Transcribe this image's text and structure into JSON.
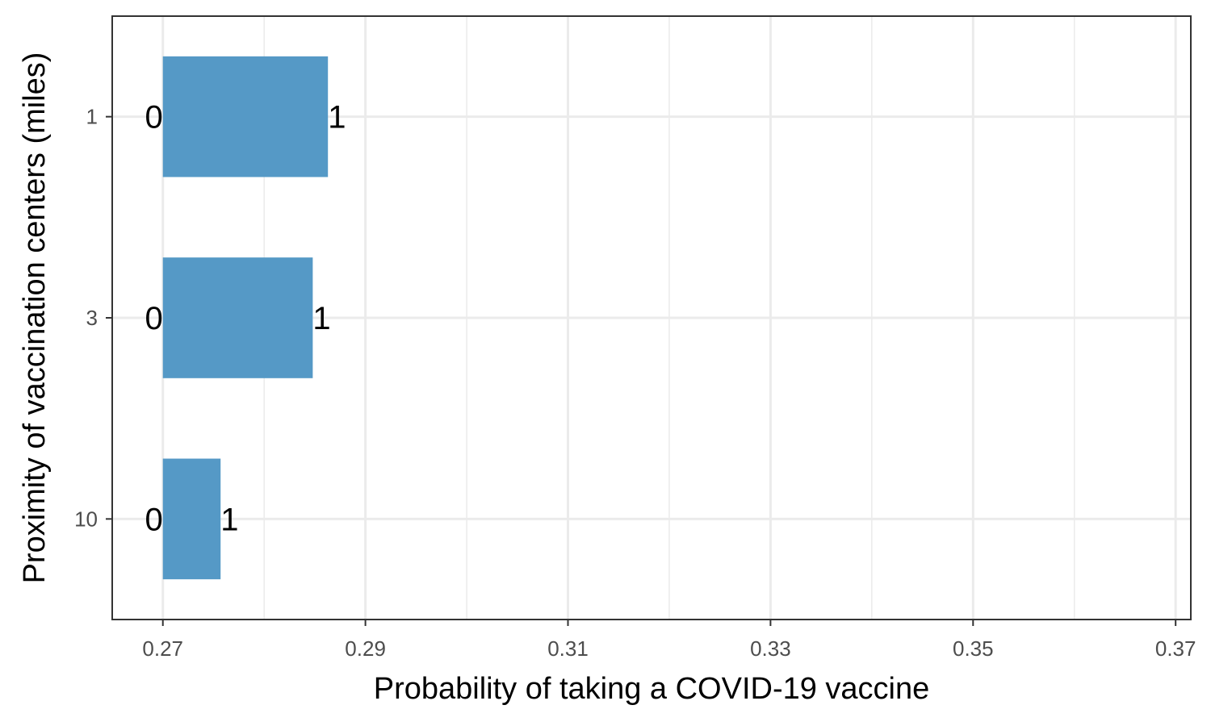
{
  "chart_data": {
    "type": "bar",
    "orientation": "horizontal",
    "title": "",
    "xlabel": "Probability of taking a COVID-19 vaccine",
    "ylabel": "Proximity of vaccination centers (miles)",
    "xlim": [
      0.265,
      0.3715
    ],
    "xticks": [
      "0.27",
      "0.29",
      "0.31",
      "0.33",
      "0.35",
      "0.37"
    ],
    "x_minor_gridlines": [
      0.28,
      0.3,
      0.32,
      0.34,
      0.36
    ],
    "categories": [
      "1",
      "3",
      "10"
    ],
    "bars": [
      {
        "category": "1",
        "start": 0.27,
        "end": 0.2863,
        "start_label": "0",
        "end_label": "1"
      },
      {
        "category": "3",
        "start": 0.27,
        "end": 0.2848,
        "start_label": "0",
        "end_label": "1"
      },
      {
        "category": "10",
        "start": 0.27,
        "end": 0.2757,
        "start_label": "0",
        "end_label": "1"
      }
    ],
    "grid": true,
    "legend": "none",
    "colors": {
      "bar": "#5599c6",
      "grid": "#ebebeb",
      "panel_border": "#333333",
      "tick_text": "#4d4d4d"
    }
  }
}
